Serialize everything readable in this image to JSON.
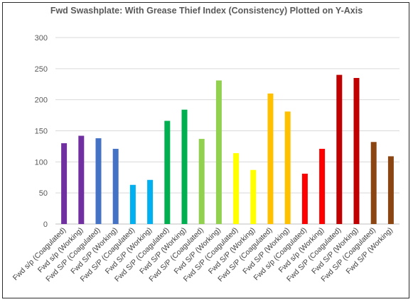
{
  "chart_data": {
    "type": "bar",
    "title": "Fwd Swashplate: With Grease Thief Index (Consistency) Plotted on Y-Axis",
    "xlabel": "",
    "ylabel": "",
    "ylim": [
      0,
      300
    ],
    "yticks": [
      0,
      50,
      100,
      150,
      200,
      250,
      300
    ],
    "grid": true,
    "legend": "none",
    "categories": [
      "Fwd s/p (Coagulated)",
      "Fwd s/p (Working)",
      "Fwd S/P (Coagulated)",
      "Fwd S/P (Working)",
      "Fwd S/P (Coagulated)",
      "Fwd S/P (Working)",
      "Fwd S/P (Coagulated)",
      "Fwd S/P (Working)",
      "Fwd S/P (Coagulated)",
      "Fwd S/P (Working)",
      "Fwd S/P (Coagulated)",
      "Fwd S/P (Working)",
      "Fwd S/P (Coagulated)",
      "Fwd S/P (Working)",
      "Fwd s/p (Coagulated)",
      "Fwd s/p (Working)",
      "Fwd S/P (Coagulated)",
      "Fwd S/P (Working)",
      "Fwd S/P (Coagulated)",
      "Fwd S/P (Working)"
    ],
    "values": [
      130,
      142,
      138,
      121,
      63,
      71,
      166,
      184,
      137,
      231,
      114,
      87,
      210,
      181,
      81,
      121,
      240,
      235,
      132,
      109
    ],
    "colors": [
      "#7030a0",
      "#7030a0",
      "#4472c4",
      "#4472c4",
      "#00b0f0",
      "#00b0f0",
      "#00b050",
      "#00b050",
      "#92d050",
      "#92d050",
      "#ffff00",
      "#ffff00",
      "#ffc000",
      "#ffc000",
      "#ff0000",
      "#ff0000",
      "#c00000",
      "#c00000",
      "#8b4513",
      "#8b4513"
    ],
    "grid_color": "#d9d9d9",
    "axis_color": "#bfbfbf"
  }
}
